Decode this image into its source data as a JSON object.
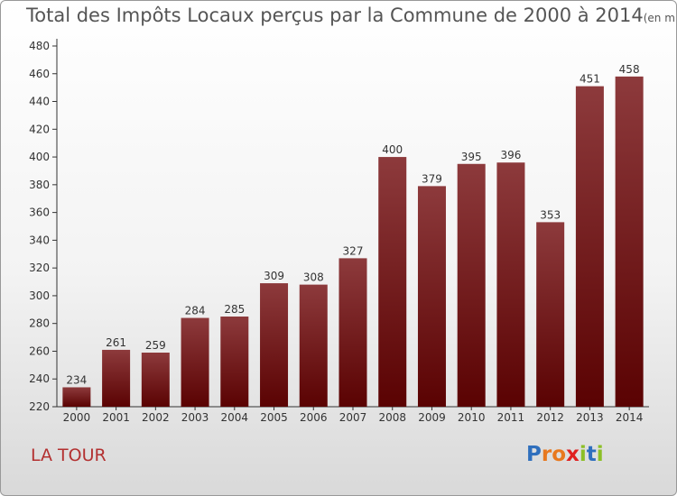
{
  "header": {
    "title": "Total des Impôts Locaux perçus par la Commune de 2000 à 2014",
    "unit": "(en milliers d'€)"
  },
  "footer": {
    "commune": "LA TOUR",
    "logo_text": "Proxiti"
  },
  "colors": {
    "bar_top": "#8d3a3c",
    "bar_bottom": "#5a0202",
    "commune_text": "#b33030",
    "logo_letters": [
      "#2f6fbd",
      "#e8781e",
      "#e8781e",
      "#e02020",
      "#8cbf26",
      "#2f6fbd",
      "#8cbf26"
    ]
  },
  "chart_data": {
    "type": "bar",
    "title": "Total des Impôts Locaux perçus par la Commune de 2000 à 2014",
    "categories": [
      "2000",
      "2001",
      "2002",
      "2003",
      "2004",
      "2005",
      "2006",
      "2007",
      "2008",
      "2009",
      "2010",
      "2011",
      "2012",
      "2013",
      "2014"
    ],
    "values": [
      234,
      261,
      259,
      284,
      285,
      309,
      308,
      327,
      400,
      379,
      395,
      396,
      353,
      451,
      458
    ],
    "ylim": [
      220,
      480
    ],
    "yticks": [
      220,
      240,
      260,
      280,
      300,
      320,
      340,
      360,
      380,
      400,
      420,
      440,
      460,
      480
    ],
    "grid": false,
    "data_labels": true
  }
}
